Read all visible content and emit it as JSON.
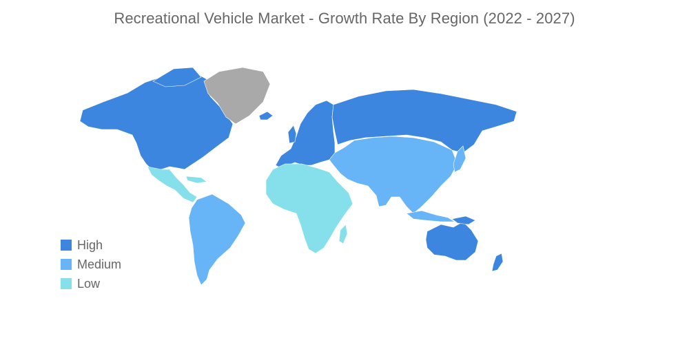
{
  "title": "Recreational Vehicle Market - Growth Rate By Region (2022 - 2027)",
  "colors": {
    "high": "#3d86e0",
    "medium": "#67b4f6",
    "low": "#86e0ec",
    "nodata": "#a9a9a9"
  },
  "legend": [
    {
      "label": "High",
      "level": "high"
    },
    {
      "label": "Medium",
      "level": "medium"
    },
    {
      "label": "Low",
      "level": "low"
    }
  ],
  "regions": [
    {
      "name": "North America",
      "level": "high"
    },
    {
      "name": "Europe",
      "level": "high"
    },
    {
      "name": "Russia",
      "level": "high"
    },
    {
      "name": "Australia and New Zealand",
      "level": "high"
    },
    {
      "name": "South America",
      "level": "medium"
    },
    {
      "name": "Asia",
      "level": "medium"
    },
    {
      "name": "Central America",
      "level": "low"
    },
    {
      "name": "Africa",
      "level": "low"
    },
    {
      "name": "Greenland",
      "level": "nodata"
    }
  ]
}
